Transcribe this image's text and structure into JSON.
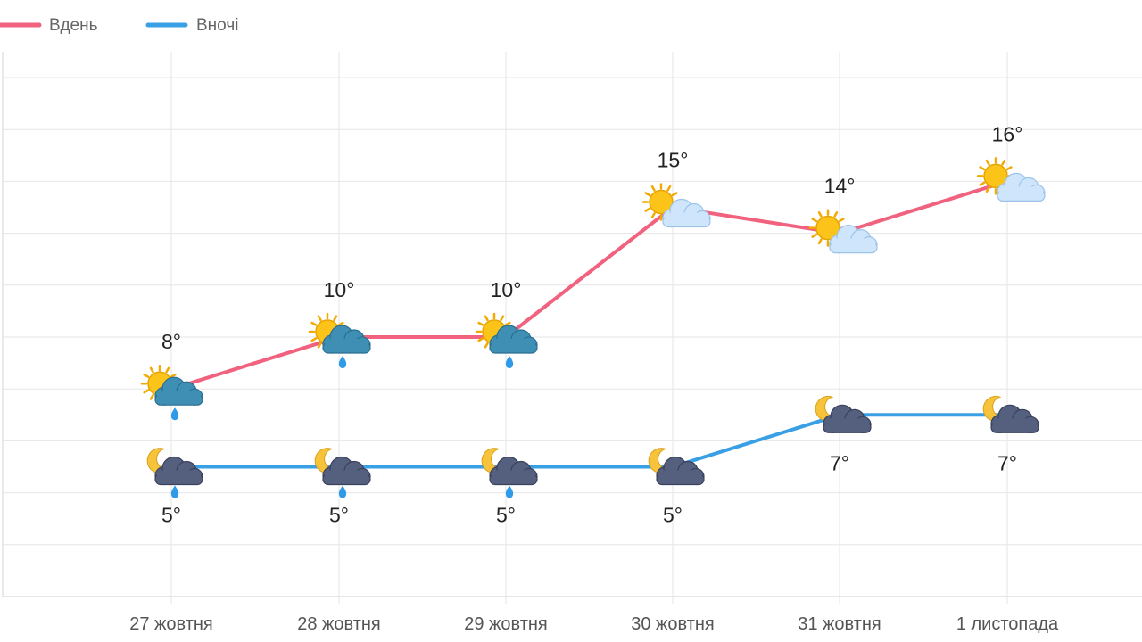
{
  "chart_data": {
    "type": "line",
    "title": "",
    "xlabel": "",
    "ylabel": "",
    "categories": [
      "27 жовтня",
      "28 жовтня",
      "29 жовтня",
      "30 жовтня",
      "31 жовтня",
      "1 листопада"
    ],
    "ylim": [
      0,
      20
    ],
    "grid": true,
    "legend_position": "top-left",
    "series": [
      {
        "name": "Вдень",
        "color": "#f0627e",
        "values": [
          8,
          10,
          10,
          15,
          14,
          16
        ],
        "labels": [
          "8°",
          "10°",
          "10°",
          "15°",
          "14°",
          "16°"
        ],
        "icons": [
          "sun-rain-cloud-icon",
          "sun-rain-cloud-icon",
          "sun-rain-cloud-icon",
          "sun-cloud-icon",
          "sun-cloud-icon",
          "sun-cloud-icon"
        ]
      },
      {
        "name": "Вночі",
        "color": "#3aa0e6",
        "values": [
          5,
          5,
          5,
          5,
          7,
          7
        ],
        "labels": [
          "5°",
          "5°",
          "5°",
          "5°",
          "7°",
          "7°"
        ],
        "icons": [
          "moon-rain-cloud-icon",
          "moon-rain-cloud-icon",
          "moon-rain-cloud-icon",
          "moon-cloud-icon",
          "moon-cloud-icon",
          "moon-cloud-icon"
        ]
      }
    ]
  }
}
